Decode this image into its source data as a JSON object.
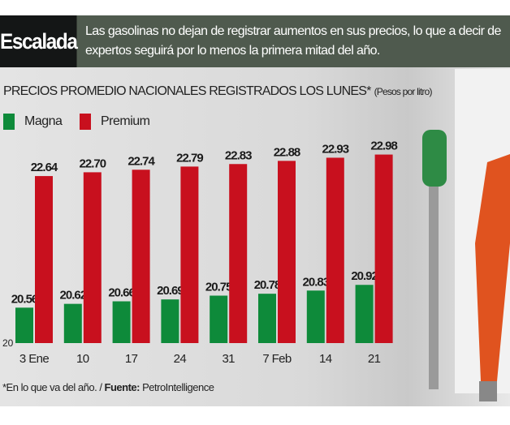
{
  "header": {
    "tag": "Escalada",
    "lead": "Las gasolinas no dejan de registrar aumentos en sus precios, lo que a decir de expertos seguirá por lo menos la primera mitad del año."
  },
  "chart_data": {
    "type": "bar",
    "title": "PRECIOS PROMEDIO NACIONALES REGISTRADOS LOS LUNES*",
    "subtitle": "(Pesos por litro)",
    "categories": [
      "3 Ene",
      "10",
      "17",
      "24",
      "31",
      "7 Feb",
      "14",
      "21"
    ],
    "series": [
      {
        "name": "Magna",
        "color": "#0e8a3a",
        "values": [
          20.56,
          20.62,
          20.66,
          20.69,
          20.75,
          20.78,
          20.83,
          20.92
        ]
      },
      {
        "name": "Premium",
        "color": "#c8101e",
        "values": [
          22.64,
          22.7,
          22.74,
          22.79,
          22.83,
          22.88,
          22.93,
          22.98
        ]
      }
    ],
    "ylim": [
      20,
      23.2
    ],
    "baseline_label": "20",
    "footnote": {
      "note": "*En lo que va del año. / ",
      "source_label": "Fuente:",
      "source": " PetroIntelligence"
    }
  }
}
